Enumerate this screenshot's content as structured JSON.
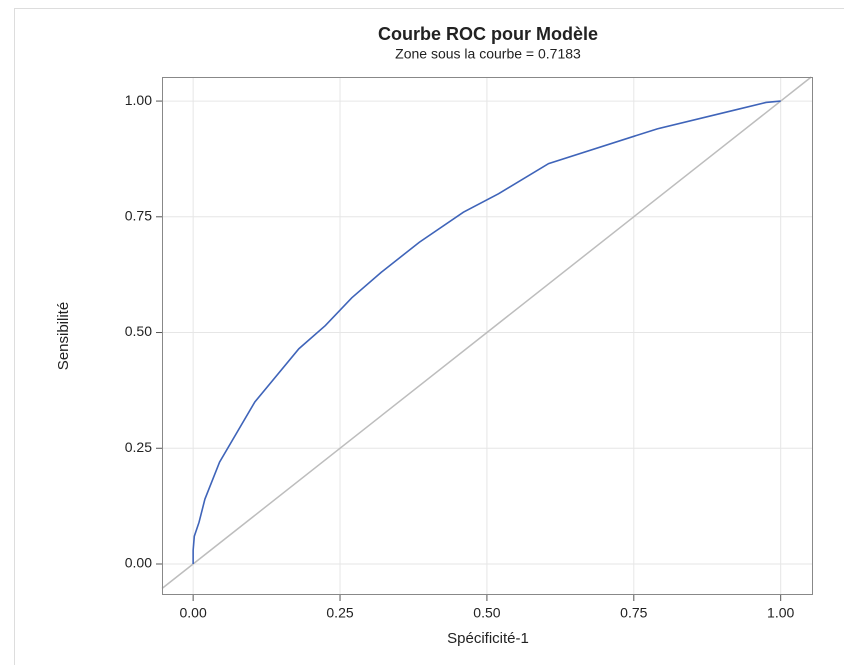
{
  "chart_data": {
    "type": "line",
    "title": "Courbe ROC pour Modèle",
    "subtitle": "Zone sous la courbe = 0.7183",
    "x_label": "Spécificité-1",
    "y_label": "Sensibilité",
    "x": [
      0,
      0,
      0.002,
      0.01,
      0.02,
      0.045,
      0.105,
      0.18,
      0.225,
      0.27,
      0.32,
      0.385,
      0.46,
      0.52,
      0.605,
      0.79,
      0.92,
      0.975,
      1
    ],
    "values": [
      0,
      0.03,
      0.06,
      0.09,
      0.14,
      0.22,
      0.35,
      0.465,
      0.515,
      0.575,
      0.63,
      0.695,
      0.76,
      0.8,
      0.865,
      0.94,
      0.98,
      0.997,
      1
    ],
    "color": "#3f64b9",
    "reference_color": "#bdbdbd",
    "xlim": [
      -0.053,
      1.055
    ],
    "ylim": [
      -0.067,
      1.052
    ],
    "xticks": [
      {
        "value": 0,
        "label": "0.00"
      },
      {
        "value": 0.25,
        "label": "0.25"
      },
      {
        "value": 0.5,
        "label": "0.50"
      },
      {
        "value": 0.75,
        "label": "0.75"
      },
      {
        "value": 1,
        "label": "1.00"
      }
    ],
    "yticks": [
      {
        "value": 0,
        "label": "0.00"
      },
      {
        "value": 0.25,
        "label": "0.25"
      },
      {
        "value": 0.5,
        "label": "0.50"
      },
      {
        "value": 0.75,
        "label": "0.75"
      },
      {
        "value": 1,
        "label": "1.00"
      }
    ],
    "grid": true
  }
}
